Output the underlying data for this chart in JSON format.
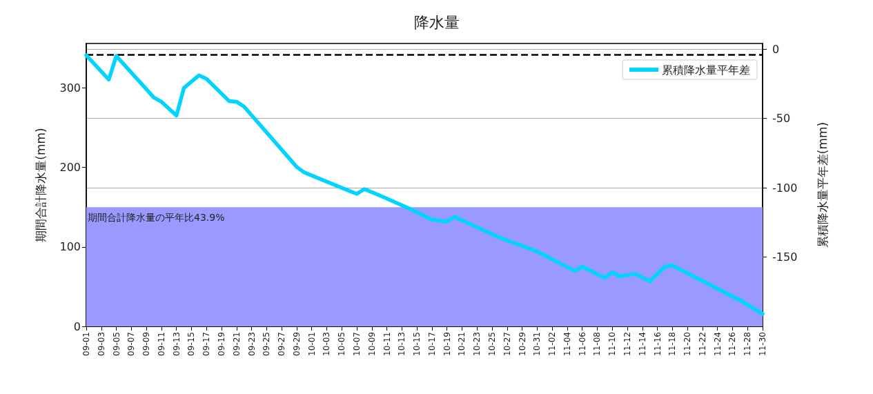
{
  "chart_data": {
    "type": "line",
    "title": "降水量",
    "ylabel": "期間合計降水量(mm)",
    "y2label": "累積降水量平年差(mm)",
    "xlim": [
      "--09-01",
      "--11-30"
    ],
    "xticks": [
      {
        "value": "--09-01",
        "label": "09-01"
      },
      {
        "value": "--09-03",
        "label": "09-03"
      },
      {
        "value": "--09-05",
        "label": "09-05"
      },
      {
        "value": "--09-07",
        "label": "09-07"
      },
      {
        "value": "--09-09",
        "label": "09-09"
      },
      {
        "value": "--09-11",
        "label": "09-11"
      },
      {
        "value": "--09-13",
        "label": "09-13"
      },
      {
        "value": "--09-15",
        "label": "09-15"
      },
      {
        "value": "--09-17",
        "label": "09-17"
      },
      {
        "value": "--09-19",
        "label": "09-19"
      },
      {
        "value": "--09-21",
        "label": "09-21"
      },
      {
        "value": "--09-23",
        "label": "09-23"
      },
      {
        "value": "--09-25",
        "label": "09-25"
      },
      {
        "value": "--09-27",
        "label": "09-27"
      },
      {
        "value": "--09-29",
        "label": "09-29"
      },
      {
        "value": "--10-01",
        "label": "10-01"
      },
      {
        "value": "--10-03",
        "label": "10-03"
      },
      {
        "value": "--10-05",
        "label": "10-05"
      },
      {
        "value": "--10-07",
        "label": "10-07"
      },
      {
        "value": "--10-09",
        "label": "10-09"
      },
      {
        "value": "--10-11",
        "label": "10-11"
      },
      {
        "value": "--10-13",
        "label": "10-13"
      },
      {
        "value": "--10-15",
        "label": "10-15"
      },
      {
        "value": "--10-17",
        "label": "10-17"
      },
      {
        "value": "--10-19",
        "label": "10-19"
      },
      {
        "value": "--10-21",
        "label": "10-21"
      },
      {
        "value": "--10-23",
        "label": "10-23"
      },
      {
        "value": "--10-25",
        "label": "10-25"
      },
      {
        "value": "--10-27",
        "label": "10-27"
      },
      {
        "value": "--10-29",
        "label": "10-29"
      },
      {
        "value": "--10-31",
        "label": "10-31"
      },
      {
        "value": "--11-02",
        "label": "11-02"
      },
      {
        "value": "--11-04",
        "label": "11-04"
      },
      {
        "value": "--11-06",
        "label": "11-06"
      },
      {
        "value": "--11-08",
        "label": "11-08"
      },
      {
        "value": "--11-10",
        "label": "11-10"
      },
      {
        "value": "--11-12",
        "label": "11-12"
      },
      {
        "value": "--11-14",
        "label": "11-14"
      },
      {
        "value": "--11-16",
        "label": "11-16"
      },
      {
        "value": "--11-18",
        "label": "11-18"
      },
      {
        "value": "--11-20",
        "label": "11-20"
      },
      {
        "value": "--11-22",
        "label": "11-22"
      },
      {
        "value": "--11-24",
        "label": "11-24"
      },
      {
        "value": "--11-26",
        "label": "11-26"
      },
      {
        "value": "--11-28",
        "label": "11-28"
      },
      {
        "value": "--11-30",
        "label": "11-30"
      }
    ],
    "ylim": [
      0,
      356
    ],
    "yticks": [
      0,
      100,
      200,
      300
    ],
    "y2lim": [
      -200,
      4
    ],
    "y2ticks": [
      0,
      -50,
      -100,
      -150
    ],
    "grid": "y",
    "legend": "top right",
    "marker": "none",
    "line_style": "solid",
    "series": [
      {
        "name": "累積降水量平年差",
        "color": "#00d4ff",
        "axis": "y2",
        "x": [
          "--09-01",
          "--09-04",
          "--09-05",
          "--09-10",
          "--09-11",
          "--09-13",
          "--09-14",
          "--09-16",
          "--09-17",
          "--09-20",
          "--09-21",
          "--09-22",
          "--09-29",
          "--09-30",
          "--10-07",
          "--10-08",
          "--10-10",
          "--10-14",
          "--10-17",
          "--10-19",
          "--10-20",
          "--10-26",
          "--10-27",
          "--10-31",
          "--11-05",
          "--11-06",
          "--11-09",
          "--11-10",
          "--11-11",
          "--11-13",
          "--11-15",
          "--11-17",
          "--11-18",
          "--11-26",
          "--11-27",
          "--11-30"
        ],
        "values": [
          -4.5,
          -22,
          -5,
          -35,
          -38,
          -48,
          -28,
          -19,
          -21.5,
          -37.5,
          -38,
          -41.5,
          -85,
          -89,
          -104.5,
          -101,
          -105.5,
          -115,
          -123,
          -124.5,
          -121,
          -136,
          -138,
          -146,
          -160,
          -157,
          -165,
          -161,
          -164,
          -162,
          -167.5,
          -157,
          -156,
          -178.5,
          -181,
          -191
        ]
      }
    ],
    "ref_lines": [
      {
        "axis": "y",
        "value": 342,
        "color": "#000000",
        "line_style": "dashed"
      }
    ],
    "bands": [
      {
        "axis": "y",
        "from": 0,
        "to": 150,
        "color": "#9999ff"
      }
    ],
    "annotations": [
      "期間合計降水量の平年比43.9%"
    ]
  }
}
